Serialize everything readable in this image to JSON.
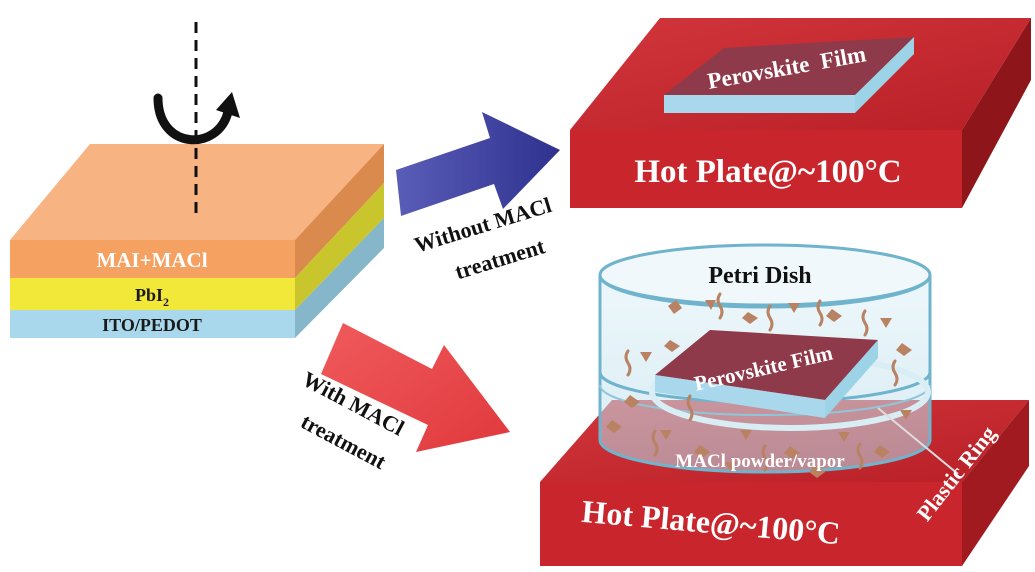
{
  "stack": {
    "top_layer": "MAI+MACl",
    "middle_layer": "PbI",
    "middle_layer_subscript": "2",
    "bottom_layer": "ITO/PEDOT"
  },
  "arrows": {
    "without": {
      "line1": "Without MACl",
      "line2": "treatment"
    },
    "with": {
      "line1": "With MACl",
      "line2": "treatment"
    }
  },
  "top_plate": {
    "film_label": "Perovskite  Film",
    "plate_label": "Hot Plate@~100°C"
  },
  "bottom_setup": {
    "dish_label": "Petri Dish",
    "film_label": "Perovskite Film",
    "powder_label": "MACl powder/vapor",
    "ring_label": "Plastic Ring",
    "plate_label": "Hot Plate@~100°C"
  },
  "colors": {
    "orange_layer": "#f4a162",
    "yellow_layer": "#f2e83a",
    "blue_layer": "#a9d8ec",
    "hot_plate": "#c8262c",
    "film_top": "#8e3a4a",
    "arrow_blue": "#3b3d9c",
    "arrow_red": "#e8474a",
    "dish": "#8fc6d8"
  }
}
